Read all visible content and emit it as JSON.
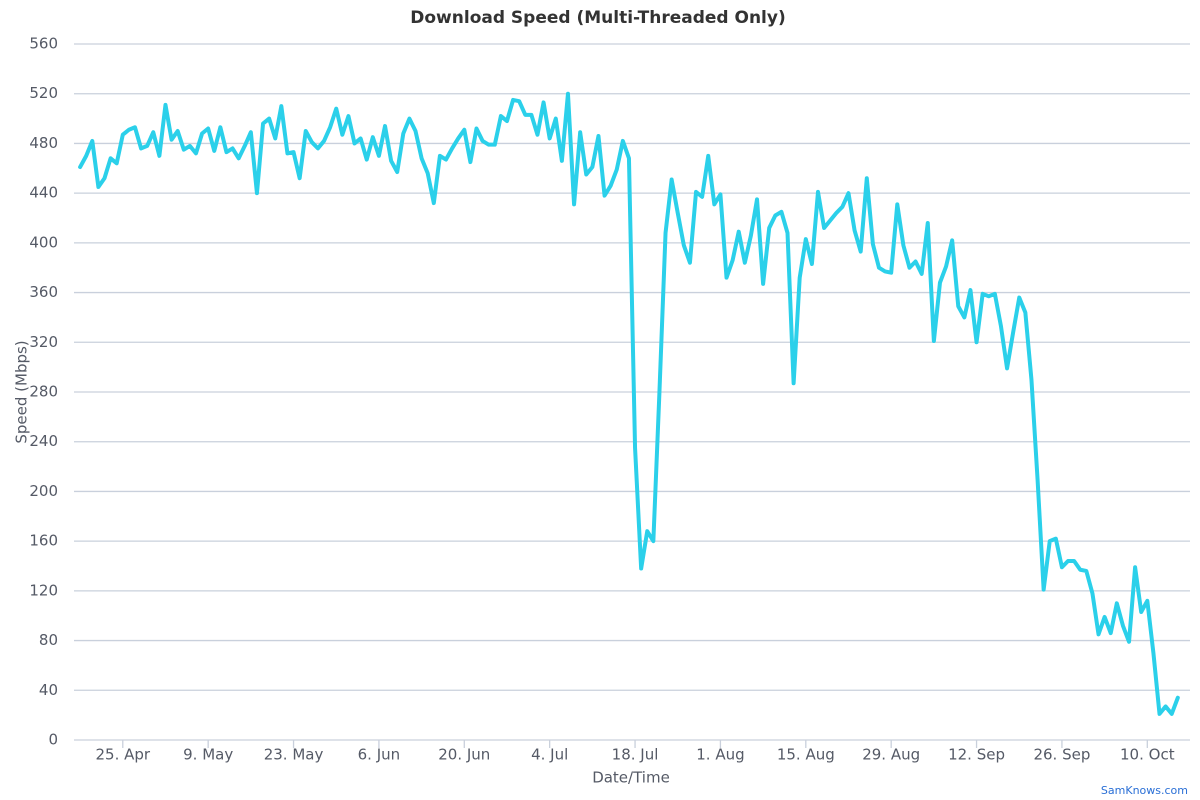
{
  "chart_data": {
    "type": "line",
    "title": "Download Speed (Multi-Threaded Only)",
    "y_label": "Speed (Mbps)",
    "x_label": "Date/Time",
    "credit": "SamKnows.com",
    "color": "#2bd0ea",
    "grid": true,
    "ylim": [
      0,
      560
    ],
    "yticks": [
      0,
      40,
      80,
      120,
      160,
      200,
      240,
      280,
      320,
      360,
      400,
      440,
      480,
      520,
      560
    ],
    "xlim": [
      "04-17",
      "10-17"
    ],
    "xticks": [
      {
        "value": "04-25",
        "label": "25. Apr"
      },
      {
        "value": "05-09",
        "label": "9. May"
      },
      {
        "value": "05-23",
        "label": "23. May"
      },
      {
        "value": "06-06",
        "label": "6. Jun"
      },
      {
        "value": "06-20",
        "label": "20. Jun"
      },
      {
        "value": "07-04",
        "label": "4. Jul"
      },
      {
        "value": "07-18",
        "label": "18. Jul"
      },
      {
        "value": "08-01",
        "label": "1. Aug"
      },
      {
        "value": "08-15",
        "label": "15. Aug"
      },
      {
        "value": "08-29",
        "label": "29. Aug"
      },
      {
        "value": "09-12",
        "label": "12. Sep"
      },
      {
        "value": "09-26",
        "label": "26. Sep"
      },
      {
        "value": "10-10",
        "label": "10. Oct"
      }
    ],
    "x": [
      "04-18",
      "04-19",
      "04-20",
      "04-21",
      "04-22",
      "04-23",
      "04-24",
      "04-25",
      "04-26",
      "04-27",
      "04-28",
      "04-29",
      "04-30",
      "05-01",
      "05-02",
      "05-03",
      "05-04",
      "05-05",
      "05-06",
      "05-07",
      "05-08",
      "05-09",
      "05-10",
      "05-11",
      "05-12",
      "05-13",
      "05-14",
      "05-15",
      "05-16",
      "05-17",
      "05-18",
      "05-19",
      "05-20",
      "05-21",
      "05-22",
      "05-23",
      "05-24",
      "05-25",
      "05-26",
      "05-27",
      "05-28",
      "05-29",
      "05-30",
      "05-31",
      "06-01",
      "06-02",
      "06-03",
      "06-04",
      "06-05",
      "06-06",
      "06-07",
      "06-08",
      "06-09",
      "06-10",
      "06-11",
      "06-12",
      "06-13",
      "06-14",
      "06-15",
      "06-16",
      "06-17",
      "06-18",
      "06-19",
      "06-20",
      "06-21",
      "06-22",
      "06-23",
      "06-24",
      "06-25",
      "06-26",
      "06-27",
      "06-28",
      "06-29",
      "06-30",
      "07-01",
      "07-02",
      "07-03",
      "07-04",
      "07-05",
      "07-06",
      "07-07",
      "07-08",
      "07-09",
      "07-10",
      "07-11",
      "07-12",
      "07-13",
      "07-14",
      "07-15",
      "07-16",
      "07-17",
      "07-18",
      "07-19",
      "07-20",
      "07-21",
      "07-22",
      "07-23",
      "07-24",
      "07-25",
      "07-26",
      "07-27",
      "07-28",
      "07-29",
      "07-30",
      "07-31",
      "08-01",
      "08-02",
      "08-03",
      "08-04",
      "08-05",
      "08-06",
      "08-07",
      "08-08",
      "08-09",
      "08-10",
      "08-11",
      "08-12",
      "08-13",
      "08-14",
      "08-15",
      "08-16",
      "08-17",
      "08-18",
      "08-19",
      "08-20",
      "08-21",
      "08-22",
      "08-23",
      "08-24",
      "08-25",
      "08-26",
      "08-27",
      "08-28",
      "08-29",
      "08-30",
      "08-31",
      "09-01",
      "09-02",
      "09-03",
      "09-04",
      "09-05",
      "09-06",
      "09-07",
      "09-08",
      "09-09",
      "09-10",
      "09-11",
      "09-12",
      "09-13",
      "09-14",
      "09-15",
      "09-16",
      "09-17",
      "09-18",
      "09-19",
      "09-20",
      "09-21",
      "09-22",
      "09-23",
      "09-24",
      "09-25",
      "09-26",
      "09-27",
      "09-28",
      "09-29",
      "09-30",
      "10-01",
      "10-02",
      "10-03",
      "10-04",
      "10-05",
      "10-06",
      "10-07",
      "10-08",
      "10-09",
      "10-10",
      "10-11",
      "10-12",
      "10-13",
      "10-14",
      "10-15"
    ],
    "values": [
      461,
      470,
      482,
      445,
      452,
      468,
      464,
      487,
      491,
      493,
      476,
      478,
      489,
      470,
      511,
      483,
      490,
      475,
      478,
      472,
      488,
      492,
      474,
      493,
      473,
      476,
      468,
      478,
      489,
      440,
      496,
      500,
      484,
      510,
      472,
      473,
      452,
      490,
      481,
      476,
      482,
      493,
      508,
      487,
      502,
      480,
      484,
      467,
      485,
      470,
      494,
      466,
      457,
      488,
      500,
      490,
      468,
      456,
      432,
      470,
      467,
      476,
      484,
      491,
      465,
      492,
      482,
      479,
      479,
      502,
      498,
      515,
      514,
      503,
      503,
      487,
      513,
      484,
      500,
      466,
      520,
      431,
      489,
      455,
      461,
      486,
      438,
      446,
      459,
      482,
      468,
      235,
      138,
      168,
      160,
      280,
      408,
      451,
      424,
      398,
      384,
      441,
      437,
      470,
      431,
      439,
      372,
      386,
      409,
      384,
      406,
      435,
      367,
      412,
      422,
      425,
      408,
      287,
      372,
      403,
      383,
      441,
      412,
      418,
      424,
      429,
      440,
      410,
      393,
      452,
      399,
      380,
      377,
      376,
      431,
      398,
      380,
      385,
      375,
      416,
      321,
      368,
      381,
      402,
      349,
      340,
      362,
      320,
      359,
      357,
      359,
      333,
      299,
      328,
      356,
      344,
      290,
      210,
      121,
      160,
      162,
      139,
      144,
      144,
      137,
      136,
      118,
      85,
      99,
      86,
      110,
      92,
      79,
      139,
      103,
      112,
      70,
      21,
      27,
      21,
      34
    ]
  }
}
